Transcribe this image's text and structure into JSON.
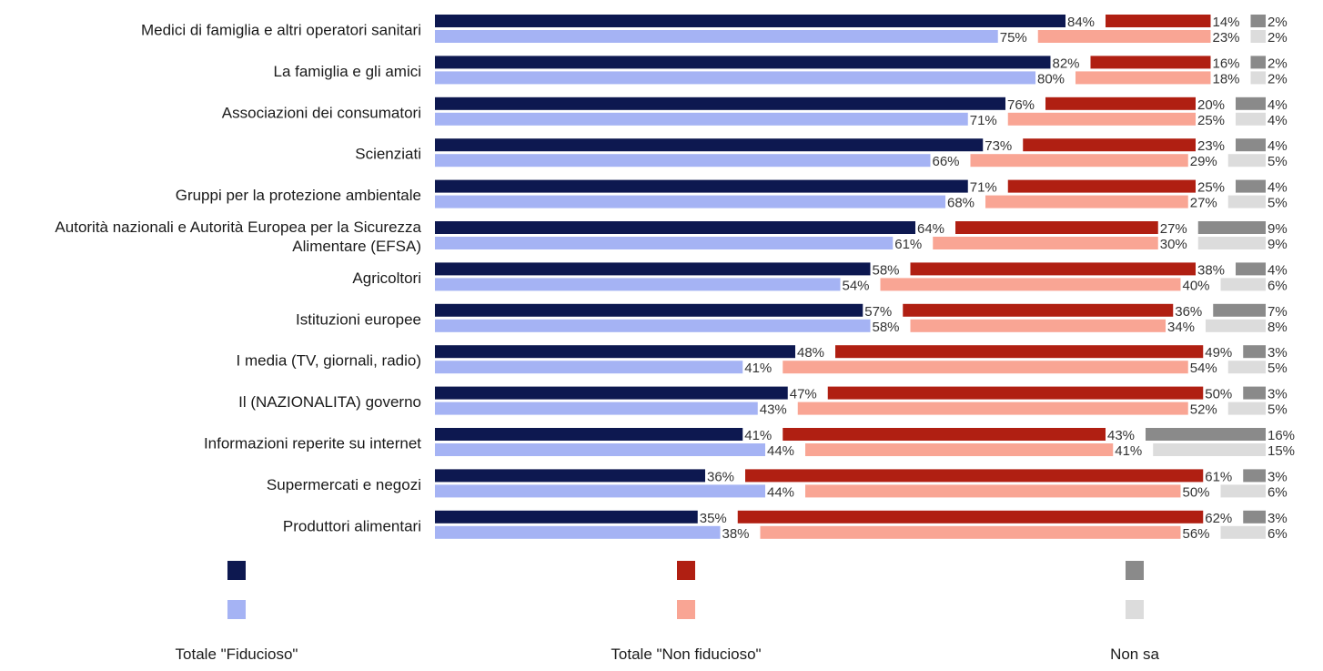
{
  "chart_data": {
    "type": "bar",
    "orientation": "horizontal",
    "stacked": true,
    "title": "",
    "xlabel": "",
    "ylabel": "",
    "xlim": [
      0,
      100
    ],
    "grid": false,
    "legend_position": "bottom",
    "value_suffix": "%",
    "categories": [
      [
        "Medici di famiglia e altri operatori sanitari"
      ],
      [
        "La famiglia e gli amici"
      ],
      [
        "Associazioni dei consumatori"
      ],
      [
        "Scienziati"
      ],
      [
        "Gruppi per la protezione ambientale"
      ],
      [
        "Autorità nazionali e Autorità Europea per la Sicurezza",
        "Alimentare (EFSA)"
      ],
      [
        "Agricoltori"
      ],
      [
        "Istituzioni europee"
      ],
      [
        "I media (TV, giornali, radio)"
      ],
      [
        "Il (NAZIONALITA) governo"
      ],
      [
        "Informazioni reperite su internet"
      ],
      [
        "Supermercati e negozi"
      ],
      [
        "Produttori alimentari"
      ]
    ],
    "rows": [
      {
        "name": "dark",
        "segments": [
          {
            "name": "fiducioso",
            "color": "#0d1850",
            "values": [
              84,
              82,
              76,
              73,
              71,
              64,
              58,
              57,
              48,
              47,
              41,
              36,
              35
            ]
          },
          {
            "name": "non_fiducioso",
            "color": "#b01f12",
            "values": [
              14,
              16,
              20,
              23,
              25,
              27,
              38,
              36,
              49,
              50,
              43,
              61,
              62
            ]
          },
          {
            "name": "non_sa",
            "color": "#8a8a8a",
            "values": [
              2,
              2,
              4,
              4,
              4,
              9,
              4,
              7,
              3,
              3,
              16,
              3,
              3
            ]
          }
        ]
      },
      {
        "name": "light",
        "segments": [
          {
            "name": "fiducioso",
            "color": "#a5b3f4",
            "values": [
              75,
              80,
              71,
              66,
              68,
              61,
              54,
              58,
              41,
              43,
              44,
              44,
              38
            ]
          },
          {
            "name": "non_fiducioso",
            "color": "#f9a594",
            "values": [
              23,
              18,
              25,
              29,
              27,
              30,
              40,
              34,
              54,
              52,
              41,
              50,
              56
            ]
          },
          {
            "name": "non_sa",
            "color": "#dcdcdc",
            "values": [
              2,
              2,
              4,
              5,
              5,
              9,
              6,
              8,
              5,
              5,
              15,
              6,
              6
            ]
          }
        ]
      }
    ],
    "legend": [
      {
        "label": "Totale \"Fiducioso\"",
        "colors": [
          "#0d1850",
          "#a5b3f4"
        ]
      },
      {
        "label": "Totale \"Non fiducioso\"",
        "colors": [
          "#b01f12",
          "#f9a594"
        ]
      },
      {
        "label": "Non sa",
        "colors": [
          "#8a8a8a",
          "#dcdcdc"
        ]
      }
    ]
  }
}
